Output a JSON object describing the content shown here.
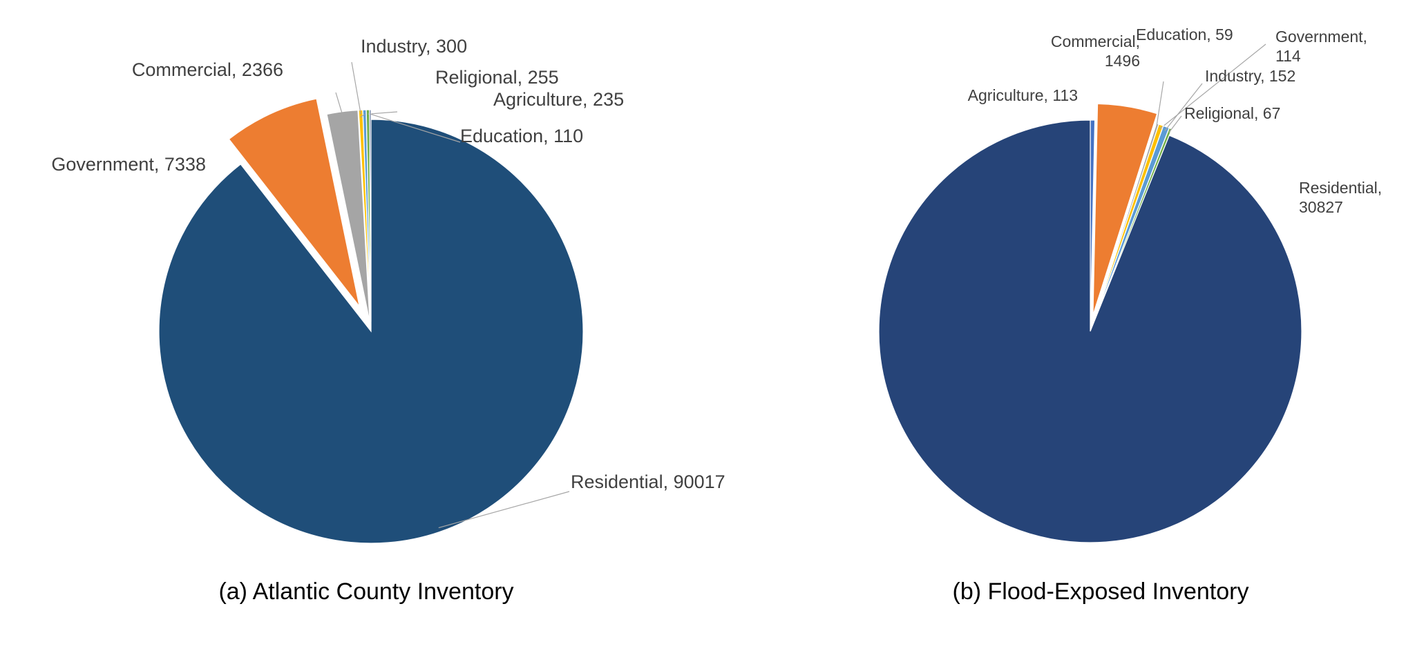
{
  "chart_data": [
    {
      "type": "pie",
      "title": "(a) Atlantic County Inventory",
      "slices": [
        {
          "label": "Residential",
          "value": 90017,
          "color": "#1f4e79",
          "display": "Residential, 90017"
        },
        {
          "label": "Government",
          "value": 7338,
          "color": "#ed7d31",
          "display": "Government, 7338"
        },
        {
          "label": "Commercial",
          "value": 2366,
          "color": "#a5a5a5",
          "display": "Commercial, 2366"
        },
        {
          "label": "Industry",
          "value": 300,
          "color": "#ffc000",
          "display": "Industry, 300"
        },
        {
          "label": "Religional",
          "value": 255,
          "color": "#5b9bd5",
          "display": "Religional, 255"
        },
        {
          "label": "Agriculture",
          "value": 235,
          "color": "#70ad47",
          "display": "Agriculture, 235"
        },
        {
          "label": "Education",
          "value": 110,
          "color": "#264478",
          "display": "Education, 110"
        }
      ]
    },
    {
      "type": "pie",
      "title": "(b) Flood-Exposed Inventory",
      "slices": [
        {
          "label": "Agriculture",
          "value": 113,
          "color": "#4472c4",
          "display": "Agriculture, 113"
        },
        {
          "label": "Commercial",
          "value": 1496,
          "color": "#ed7d31",
          "display_lines": [
            "Commercial,",
            "1496"
          ]
        },
        {
          "label": "Education",
          "value": 59,
          "color": "#a5a5a5",
          "display": "Education, 59"
        },
        {
          "label": "Government",
          "value": 114,
          "color": "#ffc000",
          "display_lines": [
            "Government,",
            "114"
          ]
        },
        {
          "label": "Industry",
          "value": 152,
          "color": "#5b9bd5",
          "display": "Industry, 152"
        },
        {
          "label": "Religional",
          "value": 67,
          "color": "#70ad47",
          "display": "Religional, 67"
        },
        {
          "label": "Residential",
          "value": 30827,
          "color": "#264478",
          "display_lines": [
            "Residential,",
            "30827"
          ]
        }
      ]
    }
  ]
}
